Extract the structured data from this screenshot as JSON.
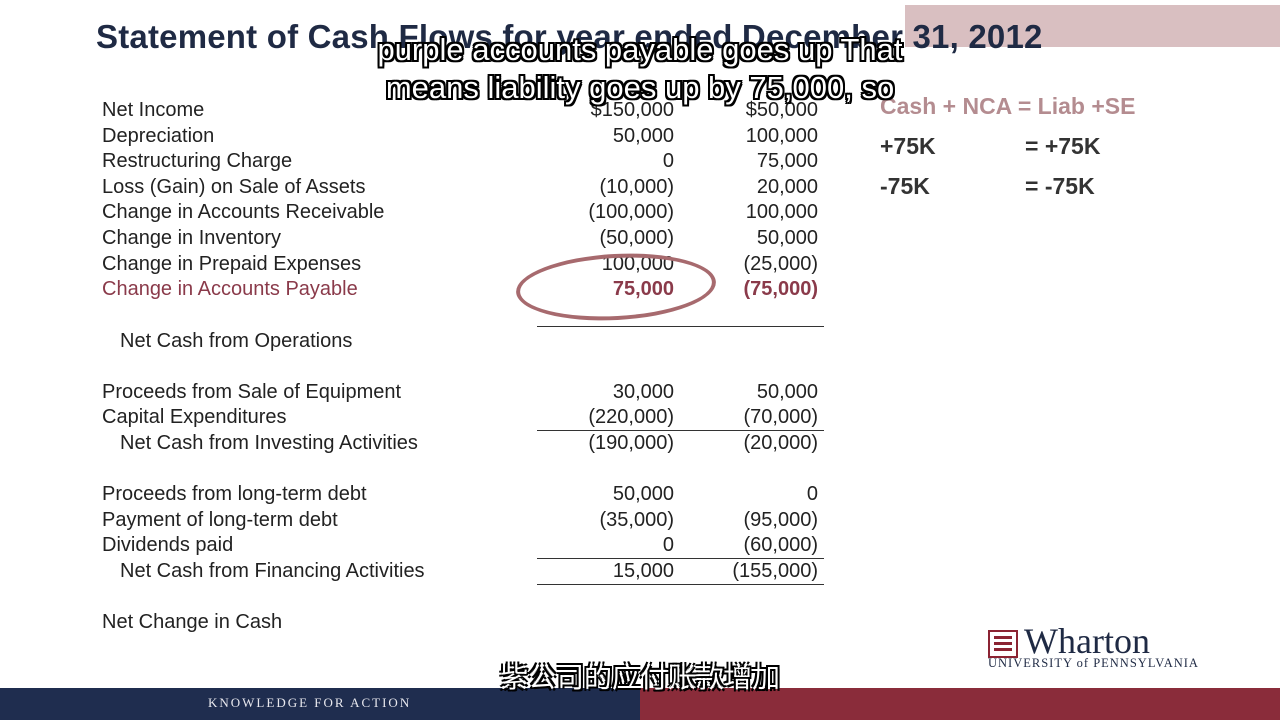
{
  "slide": {
    "title": "Statement of Cash Flows for year ended December 31, 2012",
    "rows": [
      {
        "label": "Net Income",
        "col1": "$150,000",
        "col2": "$50,000"
      },
      {
        "label": "Depreciation",
        "col1": "50,000",
        "col2": "100,000"
      },
      {
        "label": "Restructuring Charge",
        "col1": "0",
        "col2": "75,000"
      },
      {
        "label": "Loss (Gain) on Sale of Assets",
        "col1": "(10,000)",
        "col2": "20,000"
      },
      {
        "label": "Change in Accounts Receivable",
        "col1": "(100,000)",
        "col2": "100,000"
      },
      {
        "label": "Change in Inventory",
        "col1": "(50,000)",
        "col2": "50,000"
      },
      {
        "label": "Change in Prepaid Expenses",
        "col1": "100,000",
        "col2": "(25,000)"
      },
      {
        "label": "Change in Accounts Payable",
        "col1": "75,000",
        "col2": "(75,000)"
      },
      {
        "label": "Net Cash from Operations",
        "col1": "",
        "col2": ""
      },
      {
        "label": "Proceeds from Sale of Equipment",
        "col1": "30,000",
        "col2": "50,000"
      },
      {
        "label": "Capital Expenditures",
        "col1": "(220,000)",
        "col2": "(70,000)"
      },
      {
        "label": "Net Cash from Investing Activities",
        "col1": "(190,000)",
        "col2": "(20,000)"
      },
      {
        "label": "Proceeds from long-term debt",
        "col1": "50,000",
        "col2": "0"
      },
      {
        "label": "Payment of long-term debt",
        "col1": "(35,000)",
        "col2": "(95,000)"
      },
      {
        "label": "Dividends paid",
        "col1": "0",
        "col2": "(60,000)"
      },
      {
        "label": "Net Cash from Financing Activities",
        "col1": "15,000",
        "col2": "(155,000)"
      },
      {
        "label": "Net Change in Cash",
        "col1": "",
        "col2": ""
      }
    ],
    "equation": {
      "header": "Cash + NCA = Liab +SE",
      "row1_left": "+75K",
      "row1_right": "=  +75K",
      "row2_left": "-75K",
      "row2_right": "=  -75K"
    },
    "highlight_color": "#a76a6e"
  },
  "subtitles": {
    "english_line1": "purple accounts payable goes up That",
    "english_line2": "means liability goes up by 75,000, so",
    "chinese": "紫公司的应付账款增加"
  },
  "branding": {
    "logo_word": "Wharton",
    "logo_sub": "UNIVERSITY of PENNSYLVANIA",
    "footer_text": "KNOWLEDGE FOR ACTION",
    "navy": "#1f2d4f",
    "maroon": "#8a2c3a"
  }
}
